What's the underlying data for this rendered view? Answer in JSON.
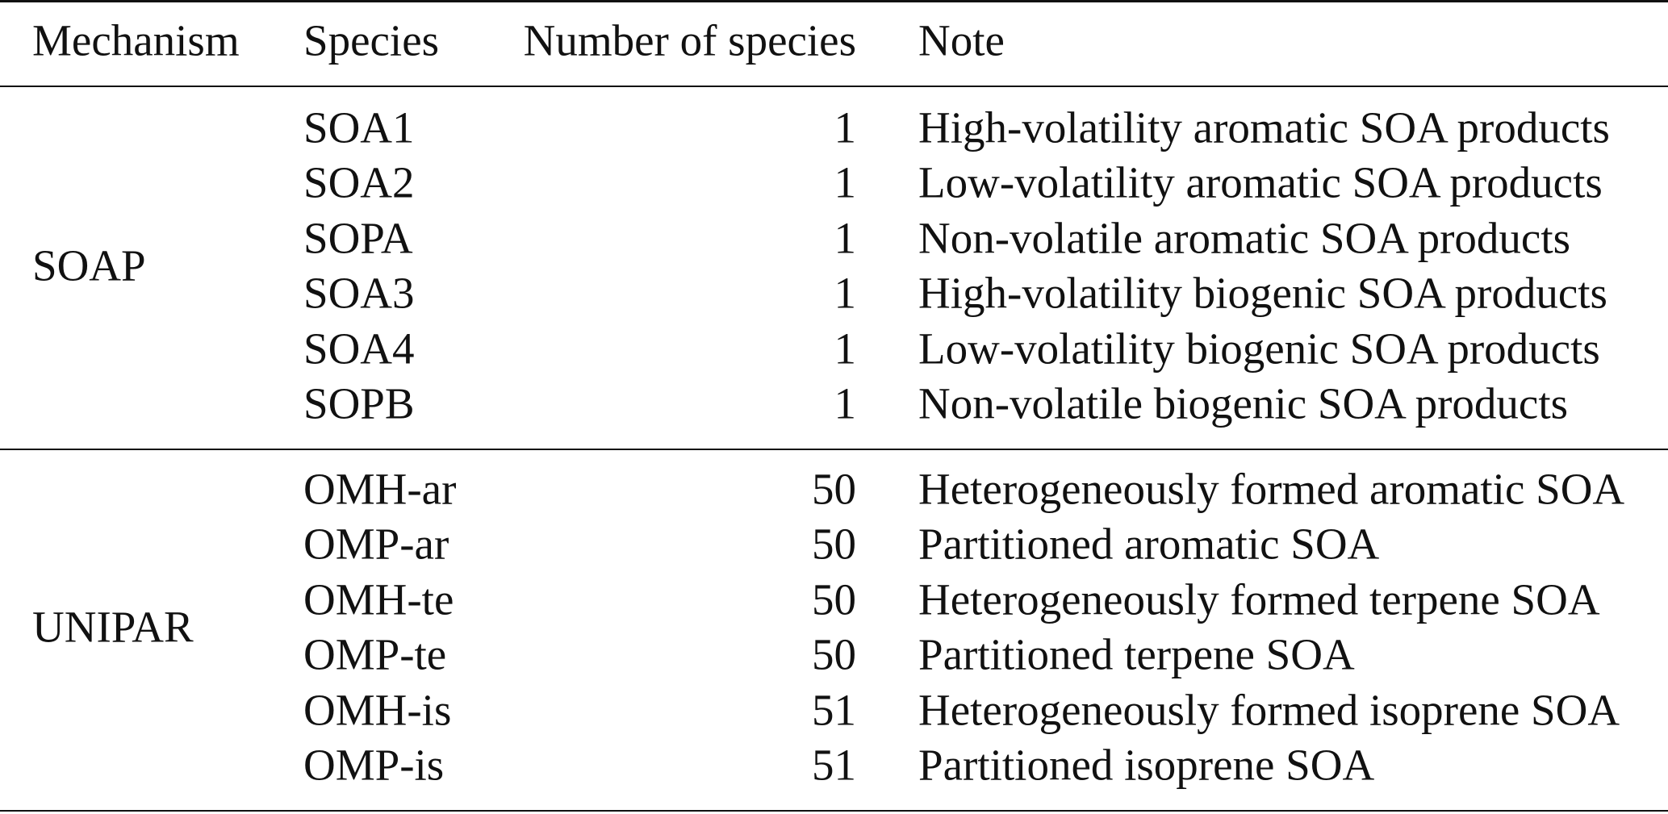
{
  "table": {
    "headers": [
      "Mechanism",
      "Species",
      "Number of species",
      "Note"
    ],
    "groups": [
      {
        "mechanism": "SOAP",
        "rows": [
          {
            "species": "SOA1",
            "number": "1",
            "note": "High-volatility aromatic SOA products"
          },
          {
            "species": "SOA2",
            "number": "1",
            "note": "Low-volatility aromatic SOA products"
          },
          {
            "species": "SOPA",
            "number": "1",
            "note": "Non-volatile aromatic SOA products"
          },
          {
            "species": "SOA3",
            "number": "1",
            "note": "High-volatility biogenic SOA products"
          },
          {
            "species": "SOA4",
            "number": "1",
            "note": "Low-volatility biogenic SOA products"
          },
          {
            "species": "SOPB",
            "number": "1",
            "note": "Non-volatile biogenic SOA products"
          }
        ]
      },
      {
        "mechanism": "UNIPAR",
        "rows": [
          {
            "species": "OMH-ar",
            "number": "50",
            "note": "Heterogeneously formed aromatic SOA"
          },
          {
            "species": "OMP-ar",
            "number": "50",
            "note": "Partitioned aromatic SOA"
          },
          {
            "species": "OMH-te",
            "number": "50",
            "note": "Heterogeneously formed terpene SOA"
          },
          {
            "species": "OMP-te",
            "number": "50",
            "note": "Partitioned terpene SOA"
          },
          {
            "species": "OMH-is",
            "number": "51",
            "note": "Heterogeneously formed isoprene SOA"
          },
          {
            "species": "OMP-is",
            "number": "51",
            "note": "Partitioned isoprene SOA"
          }
        ]
      }
    ]
  }
}
